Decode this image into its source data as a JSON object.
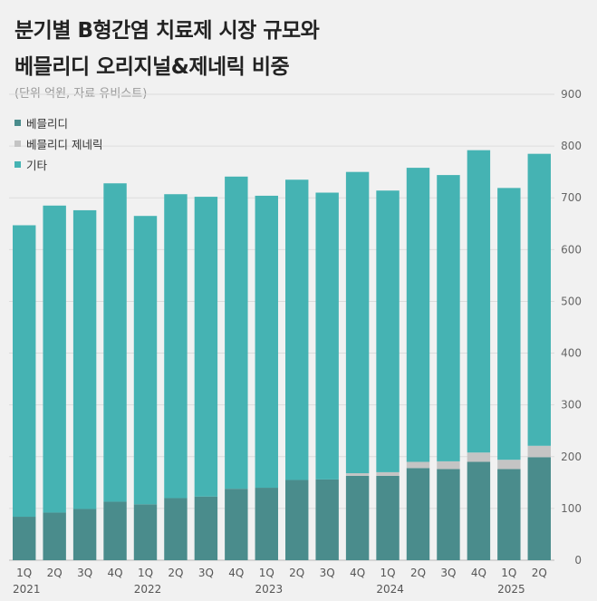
{
  "header": {
    "title_line1": "분기별 B형간염 치료제 시장 규모와",
    "title_line2": "베믈리디 오리지널&제네릭 비중",
    "subtitle": "(단위 억원, 자료 유비스트)"
  },
  "legend": [
    {
      "label": "베믈리디",
      "color": "#4a8c8c"
    },
    {
      "label": "베믈리디 제네릭",
      "color": "#c4c4c4"
    },
    {
      "label": "기타",
      "color": "#45b3b3"
    }
  ],
  "chart_data": {
    "type": "bar",
    "stacked": true,
    "categories": [
      "1Q",
      "2Q",
      "3Q",
      "4Q",
      "1Q",
      "2Q",
      "3Q",
      "4Q",
      "1Q",
      "2Q",
      "3Q",
      "4Q",
      "1Q",
      "2Q",
      "3Q",
      "4Q",
      "1Q",
      "2Q"
    ],
    "years": [
      {
        "label": "2021",
        "start_index": 0
      },
      {
        "label": "2022",
        "start_index": 4
      },
      {
        "label": "2023",
        "start_index": 8
      },
      {
        "label": "2024",
        "start_index": 12
      },
      {
        "label": "2025",
        "start_index": 16
      }
    ],
    "series": [
      {
        "name": "베믈리디",
        "values": [
          84,
          92,
          99,
          113,
          108,
          120,
          123,
          138,
          140,
          155,
          156,
          163,
          163,
          178,
          176,
          190,
          176,
          199
        ]
      },
      {
        "name": "베믈리디 제네릭",
        "values": [
          0,
          0,
          0,
          0,
          0,
          0,
          0,
          0,
          0,
          0,
          0,
          5,
          7,
          12,
          15,
          18,
          18,
          22
        ]
      },
      {
        "name": "기타",
        "values": [
          563,
          593,
          577,
          615,
          557,
          587,
          579,
          603,
          564,
          580,
          554,
          582,
          544,
          568,
          553,
          584,
          525,
          564
        ]
      }
    ],
    "yaxis": {
      "min": 0,
      "max": 900,
      "step": 100,
      "tick_labels": [
        "0",
        "100",
        "200",
        "300",
        "400",
        "500",
        "600",
        "700",
        "800",
        "900"
      ]
    },
    "title": "분기별 B형간염 치료제 시장 규모와 베믈리디 오리지널&제네릭 비중",
    "ylabel": "억원",
    "grid": true
  }
}
